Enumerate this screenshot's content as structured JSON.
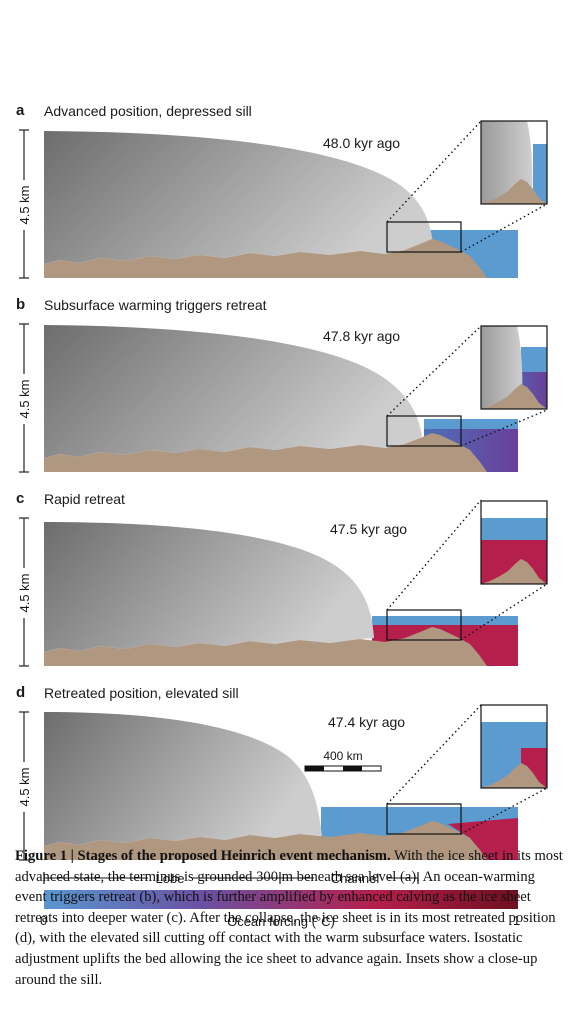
{
  "panels": [
    {
      "letter": "a",
      "title": "Advanced position, depressed sill",
      "time": "48.0 kyr ago",
      "scale": "4.5 km"
    },
    {
      "letter": "b",
      "title": "Subsurface warming triggers retreat",
      "time": "47.8 kyr ago",
      "scale": "4.5 km"
    },
    {
      "letter": "c",
      "title": "Rapid retreat",
      "time": "47.5 kyr ago",
      "scale": "4.5 km"
    },
    {
      "letter": "d",
      "title": "Retreated position, elevated sill",
      "time": "47.4 kyr ago",
      "scale": "4.5 km"
    }
  ],
  "scalebar": {
    "label": "400 km"
  },
  "regions": {
    "lobe": "Lobe",
    "channel": "Channel"
  },
  "colorbar": {
    "min": "0",
    "max": "1",
    "label": "Ocean forcing (°C)",
    "colors": [
      "#5a97cf",
      "#6a51a3",
      "#b51f4b",
      "#6e1020"
    ]
  },
  "colors": {
    "ice_light": "#c9c9c9",
    "ice_dark": "#6f6f6f",
    "bed": "#b09880",
    "water": "#5b9bd0"
  },
  "caption": {
    "title": "Figure 1 | Stages of the proposed Heinrich event mechanism.",
    "body": "With the ice sheet in its most advanced state, the terminus is grounded 300 m beneath sea level (a). An ocean-warming event triggers retreat (b), which is further amplified by enhanced calving as the ice sheet retreats into deeper water (c). After the collapse, the ice sheet is in its most retreated position (d), with the elevated sill cutting off contact with the warm subsurface waters. Isostatic adjustment uplifts the bed allowing the ice sheet to advance again. Insets show a close-up around the sill."
  }
}
